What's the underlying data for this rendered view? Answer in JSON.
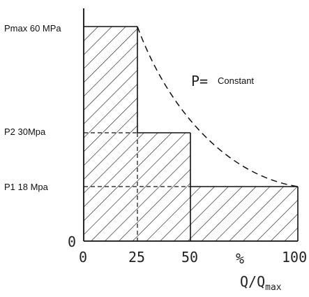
{
  "y_labels": {
    "pmax": "Pmax 60 MPa",
    "p2": "P2 30Mpa",
    "p1": "P1 18 Mpa",
    "zero": "0"
  },
  "x_ticks": [
    "0",
    "25",
    "50",
    "%",
    "100"
  ],
  "x_axis": {
    "main": "Q/Q",
    "sub": "max"
  },
  "curve_label": {
    "symbol": "P=",
    "text": "Constant"
  },
  "regions": [
    {
      "name": "Pmax region",
      "q_max_percent": 25,
      "pressure_mpa": 60
    },
    {
      "name": "P2 region",
      "q_max_percent": 50,
      "pressure_mpa": 30
    },
    {
      "name": "P1 region",
      "q_max_percent": 100,
      "pressure_mpa": 18
    }
  ]
}
